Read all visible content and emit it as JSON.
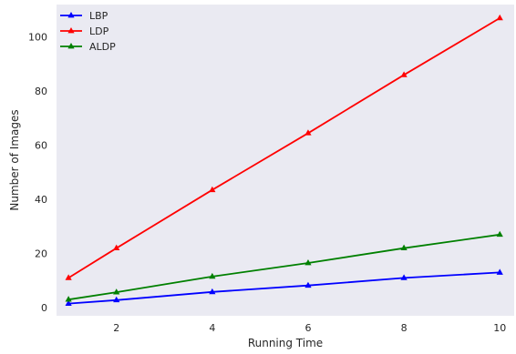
{
  "chart_data": {
    "type": "line",
    "title": "",
    "xlabel": "Running Time",
    "ylabel": "Number of Images",
    "xlim": [
      0.75,
      10.3
    ],
    "ylim": [
      -3,
      112
    ],
    "xticks": [
      2,
      4,
      6,
      8,
      10
    ],
    "yticks": [
      0,
      20,
      40,
      60,
      80,
      100
    ],
    "grid": false,
    "legend_position": "top-left",
    "background": "#eaeaf2",
    "x": [
      1,
      2,
      4,
      6,
      8,
      10
    ],
    "series": [
      {
        "name": "LBP",
        "color": "#0000ff",
        "marker": "triangle-up",
        "values": [
          1.5,
          2.8,
          5.8,
          8.2,
          11,
          13
        ]
      },
      {
        "name": "LDP",
        "color": "#ff0000",
        "marker": "triangle-up",
        "values": [
          11,
          22,
          43.5,
          64.5,
          86,
          107
        ]
      },
      {
        "name": "ALDP",
        "color": "#008000",
        "marker": "triangle-up",
        "values": [
          3,
          5.7,
          11.5,
          16.5,
          22,
          27
        ]
      }
    ]
  }
}
